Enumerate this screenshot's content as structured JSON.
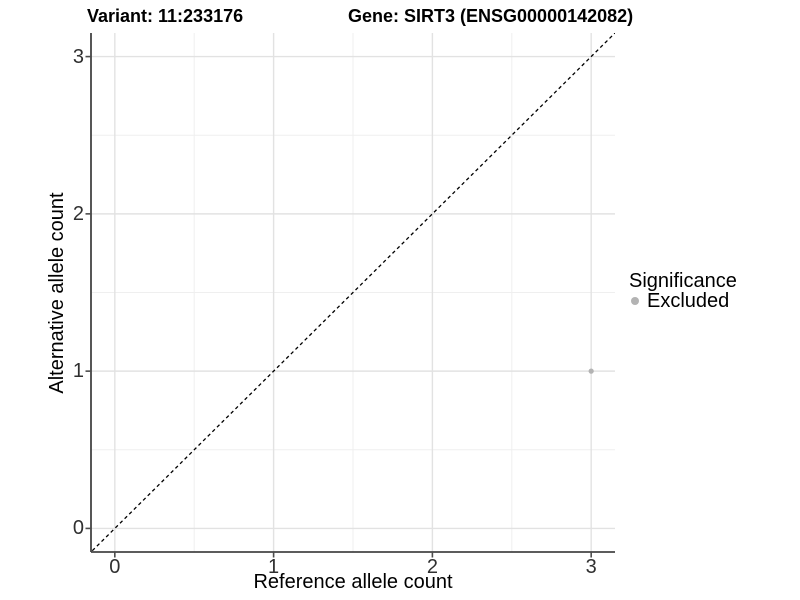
{
  "header": {
    "variant_title": "Variant: 11:233176",
    "gene_title": "Gene: SIRT3 (ENSG00000142082)"
  },
  "legend": {
    "title": "Significance",
    "items": [
      {
        "label": "Excluded",
        "color": "#b3b3b3"
      }
    ]
  },
  "chart_data": {
    "type": "scatter",
    "title": "Variant: 11:233176 | Gene: SIRT3 (ENSG00000142082)",
    "xlabel": "Reference allele count",
    "ylabel": "Alternative allele count",
    "xlim": [
      -0.15,
      3.15
    ],
    "ylim": [
      -0.15,
      3.15
    ],
    "x_ticks": [
      0,
      1,
      2,
      3
    ],
    "y_ticks": [
      0,
      1,
      2,
      3
    ],
    "minor_ticks": [
      0.5,
      1.5,
      2.5
    ],
    "grid": "major and minor gridlines on white background",
    "legend_position": "right",
    "series": [
      {
        "name": "Excluded",
        "color": "#b3b3b3",
        "points": [
          {
            "x": 3,
            "y": 1
          }
        ]
      }
    ],
    "identity_line": {
      "style": "dashed",
      "color": "#000000",
      "from": [
        -0.2,
        -0.2
      ],
      "to": [
        3.3,
        3.3
      ]
    }
  },
  "colors": {
    "background": "#ffffff",
    "grid_major": "#e2e2e2",
    "grid_minor": "#efefef",
    "axis_line": "#444444",
    "tick_mark": "#4d4d4d",
    "tick_text": "#303030",
    "title_text": "#000000",
    "point": "#b3b3b3"
  }
}
